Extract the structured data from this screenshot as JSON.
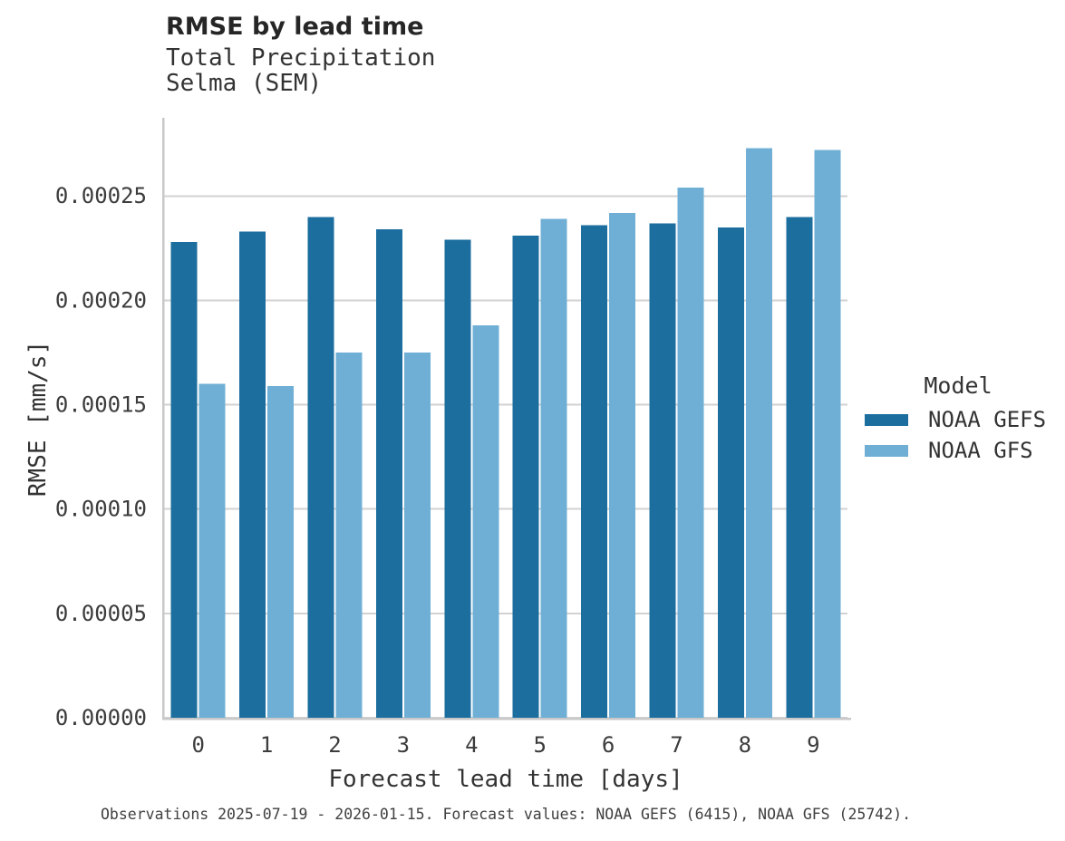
{
  "header": {
    "title": "RMSE by lead time",
    "subtitle_line1": "Total Precipitation",
    "subtitle_line2": "Selma (SEM)"
  },
  "axes": {
    "x_title": "Forecast lead time [days]",
    "y_title": "RMSE [mm/s]"
  },
  "legend": {
    "title": "Model"
  },
  "caption": {
    "text": "Observations 2025-07-19 - 2026-01-15. Forecast values: NOAA GEFS (6415), NOAA GFS (25742)."
  },
  "chart_data": {
    "type": "bar",
    "title": "RMSE by lead time",
    "subtitle": [
      "Total Precipitation",
      "Selma (SEM)"
    ],
    "xlabel": "Forecast lead time [days]",
    "ylabel": "RMSE [mm/s]",
    "categories": [
      "0",
      "1",
      "2",
      "3",
      "4",
      "5",
      "6",
      "7",
      "8",
      "9"
    ],
    "series": [
      {
        "name": "NOAA GEFS",
        "color": "#1b6e9e",
        "values": [
          0.000228,
          0.000233,
          0.00024,
          0.000234,
          0.000229,
          0.000231,
          0.000236,
          0.000237,
          0.000235,
          0.00024
        ]
      },
      {
        "name": "NOAA GFS",
        "color": "#6fafd6",
        "values": [
          0.00016,
          0.000159,
          0.000175,
          0.000175,
          0.000188,
          0.000239,
          0.000242,
          0.000254,
          0.000273,
          0.000272
        ]
      }
    ],
    "ylim": [
      0,
      0.0002875
    ],
    "yticks": [
      0,
      5e-05,
      0.0001,
      0.00015,
      0.0002,
      0.00025
    ],
    "ytick_labels": [
      "0.00000",
      "0.00005",
      "0.00010",
      "0.00015",
      "0.00020",
      "0.00025"
    ],
    "grid": "horizontal-only",
    "legend_position": "right",
    "legend_title": "Model",
    "colors": {
      "gridline": "#d2d2d2",
      "axis_line": "#c8c8c8",
      "tick_text": "#3c3c3c"
    }
  }
}
